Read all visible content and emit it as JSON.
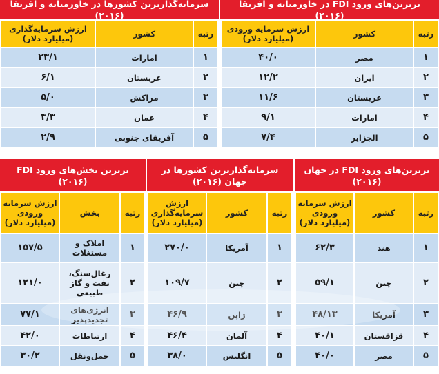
{
  "colors": {
    "title_bg": "#e31e2b",
    "header_bg": "#fdc70c",
    "row_dark": "#c6dbf0",
    "row_light": "#e2ecf7"
  },
  "tables": [
    {
      "id": "fdi-mena",
      "title": "برترین‌های ورود FDI در خاورمیانه و آفریقا (۲۰۱۶)",
      "headers": [
        "رتبه",
        "کشور",
        "ارزش سرمایه ورودی (میلیارد دلار)"
      ],
      "rows": [
        [
          "۱",
          "مصر",
          "۴۰/۰"
        ],
        [
          "۲",
          "ایران",
          "۱۲/۲"
        ],
        [
          "۳",
          "عربستان",
          "۱۱/۶"
        ],
        [
          "۴",
          "امارات",
          "۹/۱"
        ],
        [
          "۵",
          "الجزایر",
          "۷/۴"
        ]
      ]
    },
    {
      "id": "investors-mena",
      "title": "سرمایه‌گذارترین کشورها در خاورمیانه و آفریقا (۲۰۱۶)",
      "headers": [
        "رتبه",
        "کشور",
        "ارزش سرمایه‌گذاری (میلیارد دلار)"
      ],
      "rows": [
        [
          "۱",
          "امارات",
          "۲۳/۱"
        ],
        [
          "۲",
          "عربستان",
          "۶/۱"
        ],
        [
          "۳",
          "مراکش",
          "۵/۰"
        ],
        [
          "۴",
          "عمان",
          "۳/۳"
        ],
        [
          "۵",
          "آفریقای جنوبی",
          "۲/۹"
        ]
      ]
    },
    {
      "id": "fdi-world",
      "title": "برترین‌های ورود FDI در جهان (۲۰۱۶)",
      "headers": [
        "رتبه",
        "کشور",
        "ارزش سرمایه ورودی (میلیارد دلار)"
      ],
      "rows": [
        [
          "۱",
          "هند",
          "۶۲/۳"
        ],
        [
          "۲",
          "چین",
          "۵۹/۱"
        ],
        [
          "۳",
          "آمریکا",
          "۴۸/۱۳"
        ],
        [
          "۴",
          "قزاقستان",
          "۴۰/۱"
        ],
        [
          "۵",
          "مصر",
          "۴۰/۰"
        ]
      ]
    },
    {
      "id": "investors-world",
      "title": "سرمایه‌گذارترین کشورها در جهان (۲۰۱۶)",
      "headers": [
        "رتبه",
        "کشور",
        "ارزش سرمایه‌گذاری (میلیارد دلار)"
      ],
      "rows": [
        [
          "۱",
          "آمریکا",
          "۲۷۰/۰"
        ],
        [
          "۲",
          "چین",
          "۱۰۹/۷"
        ],
        [
          "۳",
          "ژاپن",
          "۴۶/۹"
        ],
        [
          "۴",
          "آلمان",
          "۴۶/۴"
        ],
        [
          "۵",
          "انگلیس",
          "۳۸/۰"
        ]
      ]
    },
    {
      "id": "fdi-sectors",
      "title": "برترین بخش‌های ورود FDI (۲۰۱۶)",
      "headers": [
        "رتبه",
        "بخش",
        "ارزش سرمایه ورودی (میلیارد دلار)"
      ],
      "rows": [
        [
          "۱",
          "املاک و مستغلات",
          "۱۵۷/۵"
        ],
        [
          "۲",
          "زغال‌سنگ، نفت و گاز طبیعی",
          "۱۲۱/۰"
        ],
        [
          "۳",
          "انرژی‌های تجدیدپذیر",
          "۷۷/۱"
        ],
        [
          "۴",
          "ارتباطات",
          "۴۲/۰"
        ],
        [
          "۵",
          "حمل‌ونقل",
          "۳۰/۲"
        ]
      ]
    }
  ]
}
